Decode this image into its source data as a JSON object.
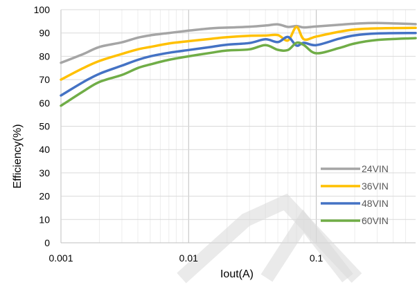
{
  "chart_data": {
    "type": "line",
    "xscale": "log",
    "xlabel": "Iout(A)",
    "ylabel": "Efficiency(%)",
    "xlim": [
      0.001,
      0.6
    ],
    "ylim": [
      0,
      100
    ],
    "x_ticks": [
      0.001,
      0.01,
      0.1
    ],
    "x_tick_labels": [
      "0.001",
      "0.01",
      "0.1"
    ],
    "y_ticks": [
      0,
      10,
      20,
      30,
      40,
      50,
      60,
      70,
      80,
      90,
      100
    ],
    "grid": true,
    "legend": "bottom-right",
    "series": [
      {
        "name": "24VIN",
        "color": "#a5a5a5",
        "points": [
          [
            0.001,
            77.2
          ],
          [
            0.0015,
            81
          ],
          [
            0.002,
            84
          ],
          [
            0.003,
            86
          ],
          [
            0.004,
            88
          ],
          [
            0.005,
            89
          ],
          [
            0.007,
            90
          ],
          [
            0.01,
            91
          ],
          [
            0.015,
            92
          ],
          [
            0.02,
            92.3
          ],
          [
            0.03,
            92.7
          ],
          [
            0.04,
            93.2
          ],
          [
            0.05,
            93.7
          ],
          [
            0.06,
            92.6
          ],
          [
            0.07,
            93
          ],
          [
            0.08,
            92.4
          ],
          [
            0.1,
            92.8
          ],
          [
            0.15,
            93.5
          ],
          [
            0.2,
            94
          ],
          [
            0.3,
            94.3
          ],
          [
            0.6,
            93.8
          ]
        ]
      },
      {
        "name": "36VIN",
        "color": "#ffc000",
        "points": [
          [
            0.001,
            70
          ],
          [
            0.0015,
            75
          ],
          [
            0.002,
            78
          ],
          [
            0.003,
            81
          ],
          [
            0.004,
            83
          ],
          [
            0.005,
            84
          ],
          [
            0.007,
            85.5
          ],
          [
            0.01,
            86.5
          ],
          [
            0.015,
            87.5
          ],
          [
            0.02,
            88.2
          ],
          [
            0.03,
            88.8
          ],
          [
            0.04,
            88.9
          ],
          [
            0.05,
            89.1
          ],
          [
            0.06,
            86.8
          ],
          [
            0.07,
            92.6
          ],
          [
            0.08,
            87.3
          ],
          [
            0.1,
            88.5
          ],
          [
            0.15,
            90.5
          ],
          [
            0.2,
            91.5
          ],
          [
            0.3,
            92
          ],
          [
            0.6,
            92.2
          ]
        ]
      },
      {
        "name": "48VIN",
        "color": "#4472c4",
        "points": [
          [
            0.001,
            63.2
          ],
          [
            0.0015,
            69
          ],
          [
            0.002,
            72.5
          ],
          [
            0.003,
            76
          ],
          [
            0.004,
            78.5
          ],
          [
            0.005,
            80
          ],
          [
            0.007,
            81.5
          ],
          [
            0.01,
            82.7
          ],
          [
            0.015,
            84
          ],
          [
            0.02,
            85
          ],
          [
            0.03,
            85.7
          ],
          [
            0.04,
            87.3
          ],
          [
            0.05,
            86.1
          ],
          [
            0.06,
            88.3
          ],
          [
            0.07,
            84.6
          ],
          [
            0.08,
            85.8
          ],
          [
            0.1,
            84.8
          ],
          [
            0.15,
            87.5
          ],
          [
            0.2,
            89
          ],
          [
            0.3,
            89.8
          ],
          [
            0.6,
            90
          ]
        ]
      },
      {
        "name": "60VIN",
        "color": "#70ad47",
        "points": [
          [
            0.001,
            58.8
          ],
          [
            0.0015,
            65
          ],
          [
            0.002,
            69
          ],
          [
            0.003,
            72
          ],
          [
            0.004,
            75
          ],
          [
            0.005,
            76.5
          ],
          [
            0.007,
            78.5
          ],
          [
            0.01,
            80
          ],
          [
            0.015,
            81.5
          ],
          [
            0.02,
            82.5
          ],
          [
            0.03,
            83
          ],
          [
            0.04,
            84.8
          ],
          [
            0.05,
            82.8
          ],
          [
            0.06,
            82.7
          ],
          [
            0.07,
            85.8
          ],
          [
            0.08,
            84.8
          ],
          [
            0.1,
            81.3
          ],
          [
            0.15,
            83.5
          ],
          [
            0.2,
            85.5
          ],
          [
            0.3,
            87
          ],
          [
            0.6,
            87.8
          ]
        ]
      }
    ]
  }
}
